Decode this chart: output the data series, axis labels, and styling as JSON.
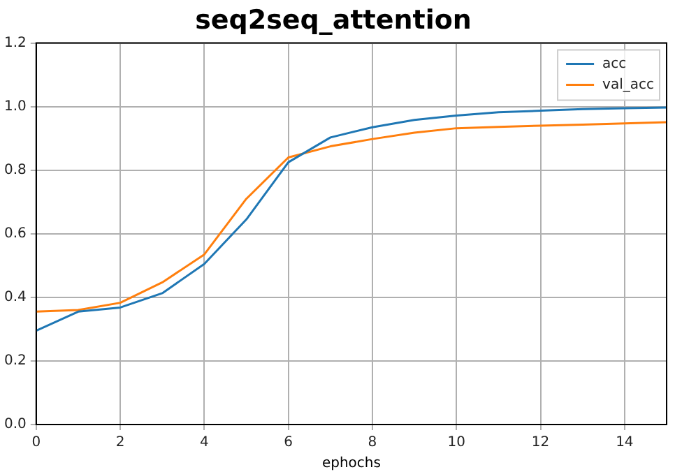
{
  "chart_data": {
    "type": "line",
    "title": "seq2seq_attention",
    "xlabel": "ephochs",
    "x": [
      0,
      1,
      2,
      3,
      4,
      5,
      6,
      7,
      8,
      9,
      10,
      11,
      12,
      13,
      14,
      15
    ],
    "series": [
      {
        "name": "acc",
        "color": "#1f77b4",
        "values": [
          0.295,
          0.355,
          0.368,
          0.413,
          0.505,
          0.645,
          0.825,
          0.903,
          0.935,
          0.958,
          0.972,
          0.982,
          0.987,
          0.992,
          0.995,
          0.997
        ]
      },
      {
        "name": "val_acc",
        "color": "#ff7f0e",
        "values": [
          0.355,
          0.36,
          0.383,
          0.447,
          0.535,
          0.71,
          0.84,
          0.875,
          0.898,
          0.918,
          0.932,
          0.936,
          0.94,
          0.943,
          0.947,
          0.951
        ]
      }
    ],
    "xlim": [
      0,
      15
    ],
    "xticks": [
      0,
      2,
      4,
      6,
      8,
      10,
      12,
      14
    ],
    "ylim": [
      0,
      1.2
    ],
    "yticks": [
      {
        "value": 0,
        "label": "0.0"
      },
      0.2,
      0.4,
      0.6,
      0.8,
      {
        "value": 1,
        "label": "1.0"
      },
      1.2
    ],
    "grid": true,
    "legend": "top right",
    "marker": "none",
    "line_style": "solid"
  }
}
